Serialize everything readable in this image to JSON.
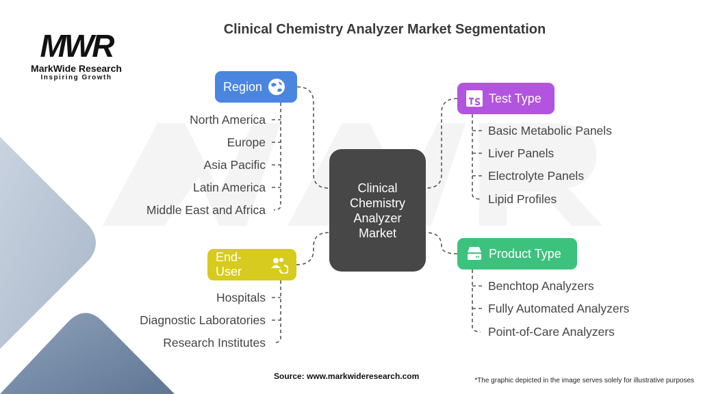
{
  "title": "Clinical Chemistry Analyzer Market Segmentation",
  "logo": {
    "mark": "MWR",
    "name": "MarkWide Research",
    "tagline": "Inspiring Growth"
  },
  "center": {
    "label": "Clinical Chemistry Analyzer Market"
  },
  "categories": {
    "region": {
      "label": "Region",
      "icon": "globe-icon",
      "color": "#4a86df",
      "items": [
        "North America",
        "Europe",
        "Asia Pacific",
        "Latin America",
        "Middle East and Africa"
      ]
    },
    "test_type": {
      "label": "Test Type",
      "icon": "ts-icon",
      "color": "#b254df",
      "items": [
        "Basic Metabolic Panels",
        "Liver Panels",
        "Electrolyte Panels",
        "Lipid Profiles"
      ]
    },
    "end_user": {
      "label": "End-User",
      "icon": "users-icon",
      "color": "#d6cb1e",
      "items": [
        "Hospitals",
        "Diagnostic Laboratories",
        "Research Institutes"
      ]
    },
    "product_type": {
      "label": "Product Type",
      "icon": "server-icon",
      "color": "#3dc27e",
      "items": [
        "Benchtop Analyzers",
        "Fully Automated Analyzers",
        "Point-of-Care Analyzers"
      ]
    }
  },
  "footer": {
    "source": "Source: www.markwideresearch.com",
    "note": "*The graphic depicted in the image serves solely for illustrative purposes"
  }
}
